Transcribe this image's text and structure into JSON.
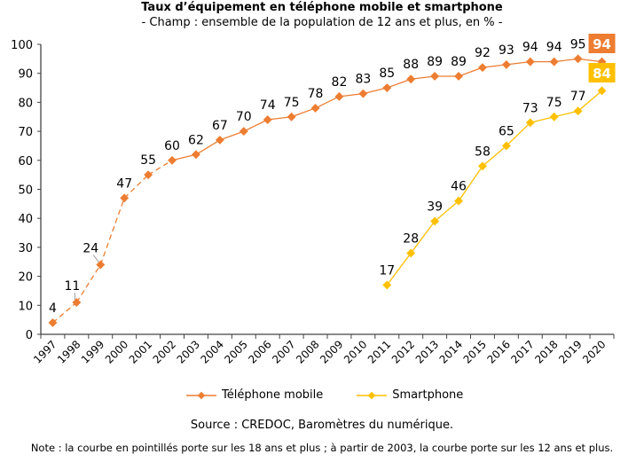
{
  "chart_data": {
    "type": "line",
    "title": "Taux d’équipement en téléphone mobile et smartphone",
    "subtitle": "- Champ : ensemble de la population de 12 ans et plus, en % -",
    "xlabel": "",
    "ylabel": "",
    "ylim": [
      0,
      100
    ],
    "yticks": [
      0,
      10,
      20,
      30,
      40,
      50,
      60,
      70,
      80,
      90,
      100
    ],
    "grid": false,
    "legend": "bottom",
    "categories": [
      "1997",
      "1998",
      "1999",
      "2000",
      "2001",
      "2002",
      "2003",
      "2004",
      "2005",
      "2006",
      "2007",
      "2008",
      "2009",
      "2010",
      "2011",
      "2012",
      "2013",
      "2014",
      "2015",
      "2016",
      "2017",
      "2018",
      "2019",
      "2020"
    ],
    "series": [
      {
        "name": "Téléphone mobile",
        "color": "#ED7D31",
        "values": [
          4,
          11,
          24,
          47,
          55,
          60,
          62,
          67,
          70,
          74,
          75,
          78,
          82,
          83,
          85,
          88,
          89,
          89,
          92,
          93,
          94,
          94,
          95,
          94
        ],
        "dashed_until": "2002"
      },
      {
        "name": "Smartphone",
        "color": "#FFC000",
        "values": [
          null,
          null,
          null,
          null,
          null,
          null,
          null,
          null,
          null,
          null,
          null,
          null,
          null,
          null,
          17,
          28,
          39,
          46,
          58,
          65,
          73,
          75,
          77,
          84
        ]
      }
    ]
  },
  "source": "Source : CREDOC, Baromètres du numérique.",
  "note": "Note : la courbe en pointillés porte sur les 18 ans et plus ; à partir de 2003, la courbe porte sur les 12 ans et plus."
}
